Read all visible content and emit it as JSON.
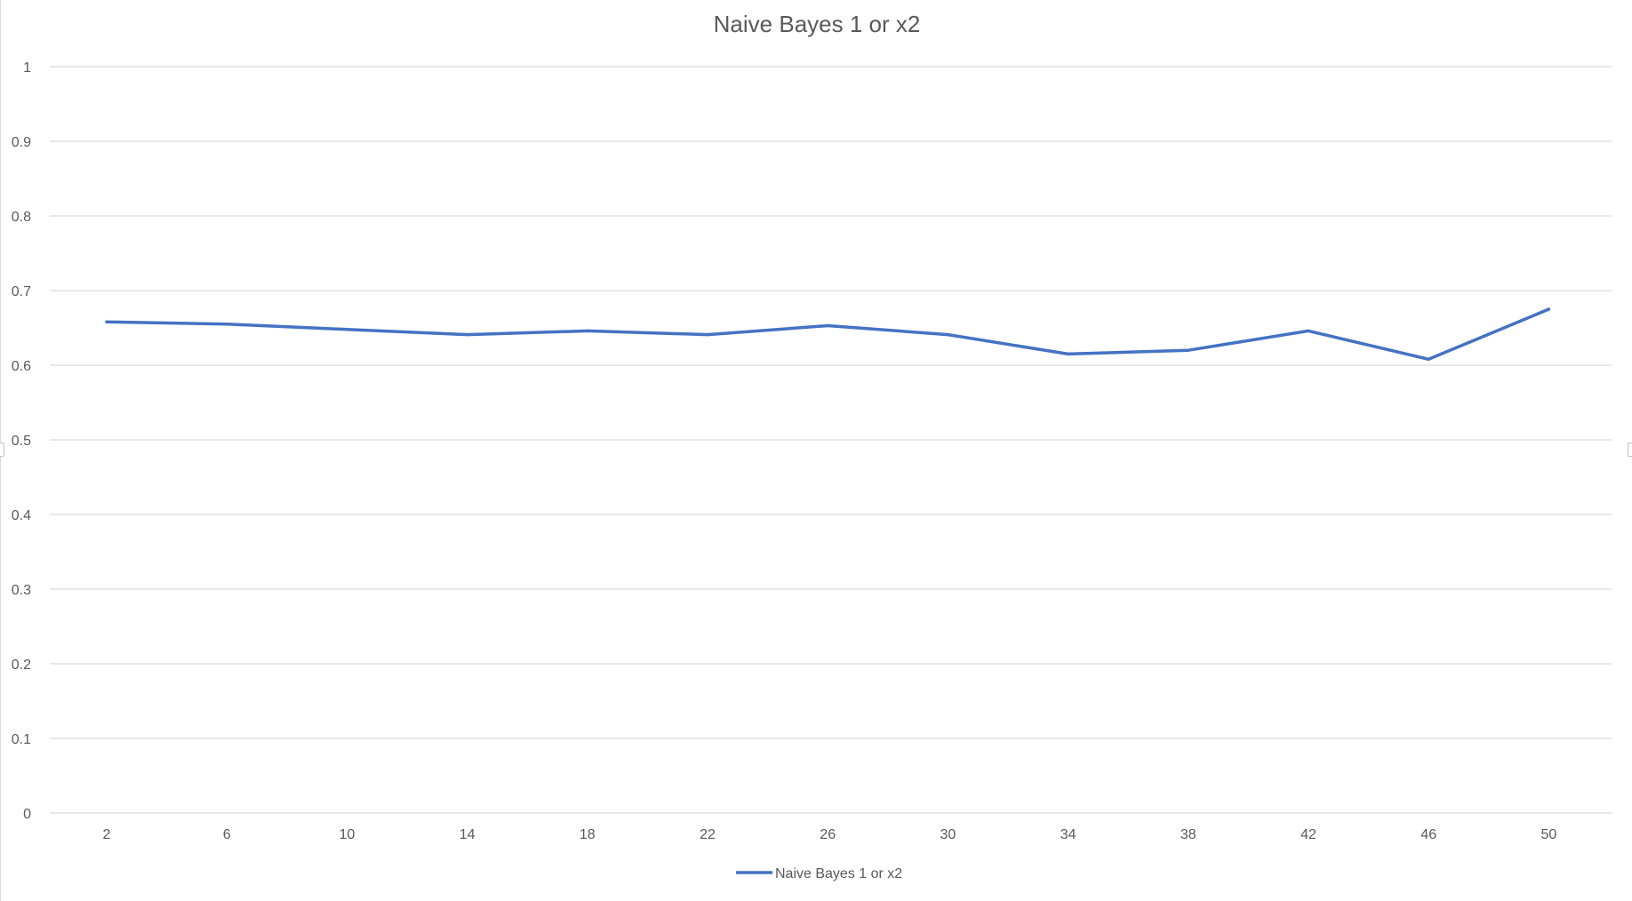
{
  "chart_data": {
    "type": "line",
    "title": "Naive Bayes 1 or x2",
    "xlabel": "",
    "ylabel": "",
    "categories": [
      "2",
      "6",
      "10",
      "14",
      "18",
      "22",
      "26",
      "30",
      "34",
      "38",
      "42",
      "46",
      "50"
    ],
    "series": [
      {
        "name": "Naive Bayes 1 or x2",
        "color": "#4472c4",
        "values": [
          0.658,
          0.655,
          0.648,
          0.641,
          0.646,
          0.641,
          0.653,
          0.641,
          0.615,
          0.62,
          0.646,
          0.608,
          0.675
        ]
      }
    ],
    "ylim": [
      0,
      1
    ],
    "yticks": [
      "0",
      "0.1",
      "0.2",
      "0.3",
      "0.4",
      "0.5",
      "0.6",
      "0.7",
      "0.8",
      "0.9",
      "1"
    ],
    "grid": true,
    "legend": "bottom"
  }
}
